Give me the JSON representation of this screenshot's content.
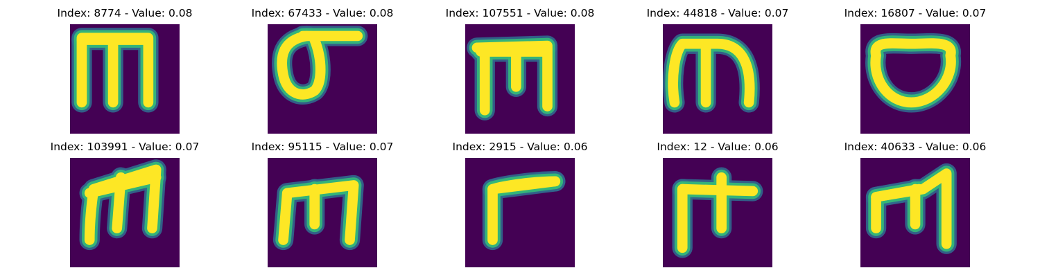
{
  "chart_data": {
    "type": "image-grid",
    "colormap": {
      "name": "viridis",
      "background": "#440154",
      "mid_low": "#31688e",
      "mid": "#35b779",
      "foreground": "#fde725"
    },
    "grid": {
      "rows": 2,
      "cols": 5
    },
    "panels": [
      {
        "title": "Index: 8774 - Value: 0.08",
        "index": 8774,
        "value": 0.08,
        "glyph": "m"
      },
      {
        "title": "Index: 67433 - Value: 0.08",
        "index": 67433,
        "value": 0.08,
        "glyph": "σ"
      },
      {
        "title": "Index: 107551 - Value: 0.08",
        "index": 107551,
        "value": 0.08,
        "glyph": "m"
      },
      {
        "title": "Index: 44818 - Value: 0.07",
        "index": 44818,
        "value": 0.07,
        "glyph": "m"
      },
      {
        "title": "Index: 16807 - Value: 0.07",
        "index": 16807,
        "value": 0.07,
        "glyph": "o"
      },
      {
        "title": "Index: 103991 - Value: 0.07",
        "index": 103991,
        "value": 0.07,
        "glyph": "m"
      },
      {
        "title": "Index: 95115 - Value: 0.07",
        "index": 95115,
        "value": 0.07,
        "glyph": "m"
      },
      {
        "title": "Index: 2915 - Value: 0.06",
        "index": 2915,
        "value": 0.06,
        "glyph": "Γ"
      },
      {
        "title": "Index: 12 - Value: 0.06",
        "index": 12,
        "value": 0.06,
        "glyph": "t"
      },
      {
        "title": "Index: 40633 - Value: 0.06",
        "index": 40633,
        "value": 0.06,
        "glyph": "m"
      }
    ]
  }
}
